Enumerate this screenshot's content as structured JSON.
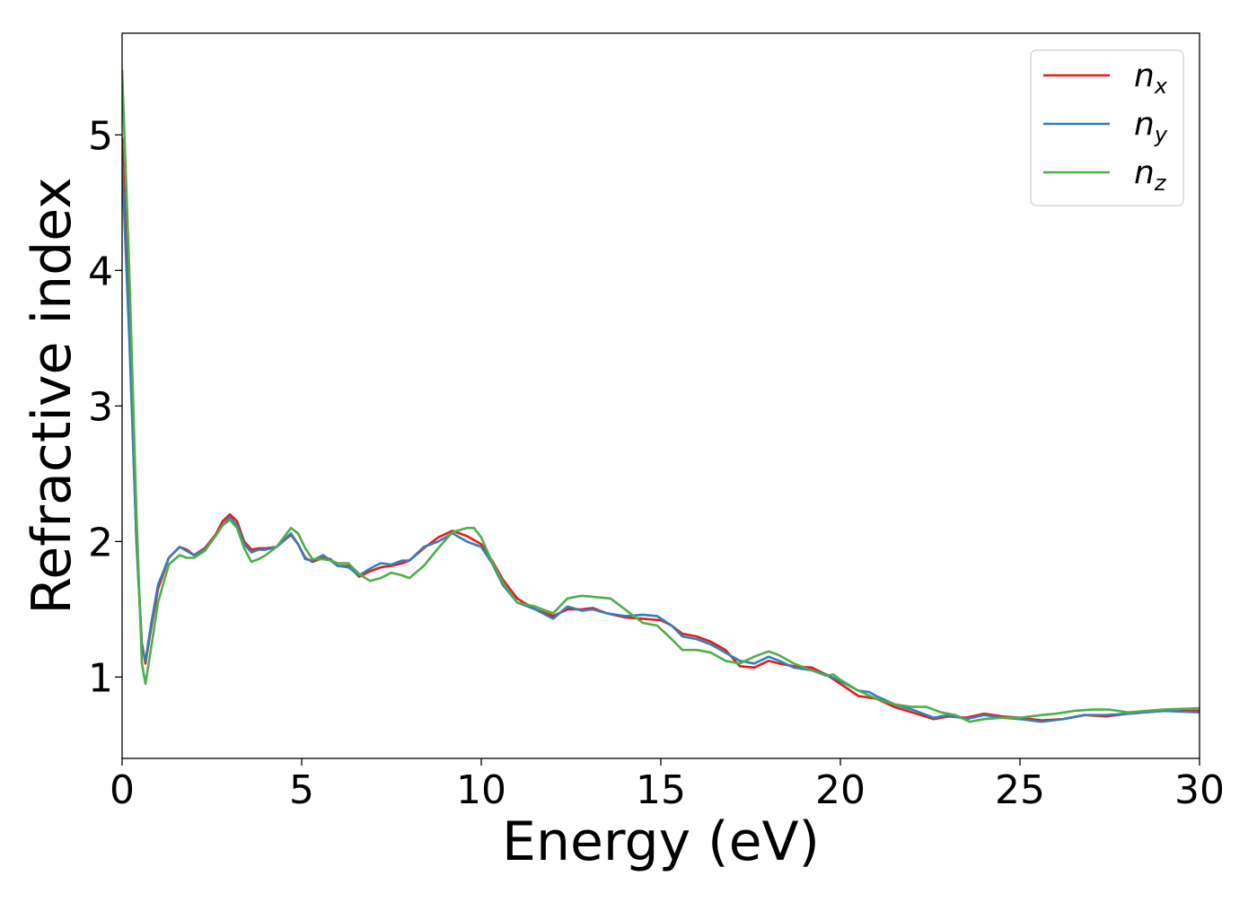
{
  "chart_data": {
    "type": "line",
    "title": "",
    "xlabel": "Energy (eV)",
    "ylabel": "Refractive index",
    "xlim": [
      0,
      30
    ],
    "ylim": [
      0.4,
      5.75
    ],
    "xticks": [
      0,
      5,
      10,
      15,
      20,
      25,
      30
    ],
    "yticks": [
      1,
      2,
      3,
      4,
      5
    ],
    "grid": false,
    "legend": {
      "position": "top-right",
      "entries": [
        {
          "base": "n",
          "sub": "x",
          "color": "#e41a1c"
        },
        {
          "base": "n",
          "sub": "y",
          "color": "#377eb8"
        },
        {
          "base": "n",
          "sub": "z",
          "color": "#4daf4a"
        }
      ]
    },
    "series": [
      {
        "name": "nx",
        "color": "#e41a1c",
        "points": [
          [
            0,
            4.98
          ],
          [
            0.2,
            3.6
          ],
          [
            0.4,
            2.0
          ],
          [
            0.55,
            1.25
          ],
          [
            0.65,
            1.1
          ],
          [
            0.8,
            1.35
          ],
          [
            1.0,
            1.65
          ],
          [
            1.3,
            1.88
          ],
          [
            1.6,
            1.96
          ],
          [
            1.8,
            1.94
          ],
          [
            2.0,
            1.9
          ],
          [
            2.3,
            1.95
          ],
          [
            2.6,
            2.05
          ],
          [
            2.8,
            2.15
          ],
          [
            3.0,
            2.2
          ],
          [
            3.2,
            2.15
          ],
          [
            3.4,
            2.0
          ],
          [
            3.6,
            1.94
          ],
          [
            3.8,
            1.95
          ],
          [
            4.0,
            1.95
          ],
          [
            4.3,
            1.96
          ],
          [
            4.7,
            2.05
          ],
          [
            4.9,
            1.98
          ],
          [
            5.1,
            1.88
          ],
          [
            5.3,
            1.85
          ],
          [
            5.6,
            1.88
          ],
          [
            5.8,
            1.87
          ],
          [
            6.0,
            1.82
          ],
          [
            6.3,
            1.82
          ],
          [
            6.6,
            1.74
          ],
          [
            6.9,
            1.78
          ],
          [
            7.2,
            1.81
          ],
          [
            7.5,
            1.82
          ],
          [
            7.8,
            1.84
          ],
          [
            8.0,
            1.86
          ],
          [
            8.4,
            1.95
          ],
          [
            8.8,
            2.03
          ],
          [
            9.2,
            2.08
          ],
          [
            9.6,
            2.04
          ],
          [
            10.0,
            1.98
          ],
          [
            10.3,
            1.86
          ],
          [
            10.6,
            1.72
          ],
          [
            11.0,
            1.58
          ],
          [
            11.5,
            1.5
          ],
          [
            12.0,
            1.45
          ],
          [
            12.4,
            1.5
          ],
          [
            12.8,
            1.5
          ],
          [
            13.1,
            1.51
          ],
          [
            13.5,
            1.47
          ],
          [
            14.0,
            1.44
          ],
          [
            14.5,
            1.43
          ],
          [
            15.0,
            1.42
          ],
          [
            15.3,
            1.38
          ],
          [
            15.6,
            1.32
          ],
          [
            16.0,
            1.3
          ],
          [
            16.4,
            1.26
          ],
          [
            16.8,
            1.2
          ],
          [
            17.2,
            1.08
          ],
          [
            17.6,
            1.07
          ],
          [
            18.0,
            1.12
          ],
          [
            18.3,
            1.1
          ],
          [
            18.7,
            1.08
          ],
          [
            19.2,
            1.07
          ],
          [
            19.6,
            1.02
          ],
          [
            20.0,
            0.95
          ],
          [
            20.5,
            0.86
          ],
          [
            21.0,
            0.84
          ],
          [
            21.5,
            0.78
          ],
          [
            22.0,
            0.74
          ],
          [
            22.6,
            0.69
          ],
          [
            23.0,
            0.71
          ],
          [
            23.5,
            0.7
          ],
          [
            24.0,
            0.73
          ],
          [
            24.5,
            0.71
          ],
          [
            25.0,
            0.7
          ],
          [
            25.6,
            0.68
          ],
          [
            26.2,
            0.69
          ],
          [
            26.8,
            0.72
          ],
          [
            27.4,
            0.71
          ],
          [
            28.0,
            0.73
          ],
          [
            29.0,
            0.75
          ],
          [
            30.0,
            0.75
          ]
        ]
      },
      {
        "name": "ny",
        "color": "#377eb8",
        "points": [
          [
            0,
            4.78
          ],
          [
            0.2,
            3.5
          ],
          [
            0.4,
            2.0
          ],
          [
            0.55,
            1.22
          ],
          [
            0.65,
            1.12
          ],
          [
            0.8,
            1.38
          ],
          [
            1.0,
            1.68
          ],
          [
            1.3,
            1.88
          ],
          [
            1.6,
            1.96
          ],
          [
            1.8,
            1.93
          ],
          [
            2.0,
            1.9
          ],
          [
            2.3,
            1.94
          ],
          [
            2.6,
            2.04
          ],
          [
            2.8,
            2.12
          ],
          [
            3.0,
            2.18
          ],
          [
            3.2,
            2.12
          ],
          [
            3.4,
            1.98
          ],
          [
            3.6,
            1.92
          ],
          [
            3.8,
            1.94
          ],
          [
            4.0,
            1.94
          ],
          [
            4.3,
            1.96
          ],
          [
            4.7,
            2.06
          ],
          [
            4.9,
            1.98
          ],
          [
            5.1,
            1.87
          ],
          [
            5.3,
            1.86
          ],
          [
            5.6,
            1.9
          ],
          [
            5.8,
            1.86
          ],
          [
            6.0,
            1.82
          ],
          [
            6.3,
            1.81
          ],
          [
            6.6,
            1.75
          ],
          [
            6.9,
            1.8
          ],
          [
            7.2,
            1.84
          ],
          [
            7.5,
            1.83
          ],
          [
            7.8,
            1.86
          ],
          [
            8.0,
            1.86
          ],
          [
            8.4,
            1.96
          ],
          [
            8.8,
            2.0
          ],
          [
            9.2,
            2.06
          ],
          [
            9.6,
            2.0
          ],
          [
            10.0,
            1.96
          ],
          [
            10.3,
            1.84
          ],
          [
            10.6,
            1.68
          ],
          [
            11.0,
            1.55
          ],
          [
            11.5,
            1.5
          ],
          [
            12.0,
            1.43
          ],
          [
            12.4,
            1.52
          ],
          [
            12.8,
            1.49
          ],
          [
            13.1,
            1.5
          ],
          [
            13.5,
            1.47
          ],
          [
            14.0,
            1.45
          ],
          [
            14.5,
            1.46
          ],
          [
            14.9,
            1.45
          ],
          [
            15.3,
            1.38
          ],
          [
            15.6,
            1.3
          ],
          [
            16.0,
            1.28
          ],
          [
            16.4,
            1.24
          ],
          [
            16.8,
            1.18
          ],
          [
            17.2,
            1.12
          ],
          [
            17.6,
            1.1
          ],
          [
            18.0,
            1.15
          ],
          [
            18.3,
            1.12
          ],
          [
            18.7,
            1.07
          ],
          [
            19.2,
            1.05
          ],
          [
            19.6,
            1.02
          ],
          [
            20.0,
            0.97
          ],
          [
            20.5,
            0.9
          ],
          [
            20.8,
            0.89
          ],
          [
            21.0,
            0.86
          ],
          [
            21.5,
            0.8
          ],
          [
            22.0,
            0.76
          ],
          [
            22.6,
            0.7
          ],
          [
            23.0,
            0.72
          ],
          [
            23.5,
            0.69
          ],
          [
            24.0,
            0.72
          ],
          [
            24.5,
            0.7
          ],
          [
            25.0,
            0.69
          ],
          [
            25.6,
            0.67
          ],
          [
            26.2,
            0.69
          ],
          [
            26.8,
            0.72
          ],
          [
            27.4,
            0.72
          ],
          [
            28.0,
            0.73
          ],
          [
            29.0,
            0.75
          ],
          [
            30.0,
            0.74
          ]
        ]
      },
      {
        "name": "nz",
        "color": "#4daf4a",
        "points": [
          [
            0,
            5.48
          ],
          [
            0.2,
            4.0
          ],
          [
            0.4,
            2.2
          ],
          [
            0.55,
            1.1
          ],
          [
            0.65,
            0.95
          ],
          [
            0.8,
            1.2
          ],
          [
            1.0,
            1.55
          ],
          [
            1.3,
            1.83
          ],
          [
            1.6,
            1.9
          ],
          [
            1.8,
            1.88
          ],
          [
            2.0,
            1.88
          ],
          [
            2.3,
            1.93
          ],
          [
            2.6,
            2.04
          ],
          [
            2.8,
            2.12
          ],
          [
            3.0,
            2.16
          ],
          [
            3.2,
            2.1
          ],
          [
            3.4,
            1.95
          ],
          [
            3.6,
            1.85
          ],
          [
            3.8,
            1.87
          ],
          [
            4.0,
            1.9
          ],
          [
            4.3,
            1.96
          ],
          [
            4.7,
            2.1
          ],
          [
            4.9,
            2.06
          ],
          [
            5.1,
            1.95
          ],
          [
            5.3,
            1.87
          ],
          [
            5.6,
            1.87
          ],
          [
            5.8,
            1.86
          ],
          [
            6.0,
            1.84
          ],
          [
            6.3,
            1.84
          ],
          [
            6.6,
            1.76
          ],
          [
            6.9,
            1.71
          ],
          [
            7.2,
            1.73
          ],
          [
            7.5,
            1.77
          ],
          [
            7.8,
            1.75
          ],
          [
            8.0,
            1.73
          ],
          [
            8.4,
            1.82
          ],
          [
            8.8,
            1.95
          ],
          [
            9.2,
            2.07
          ],
          [
            9.6,
            2.1
          ],
          [
            9.8,
            2.1
          ],
          [
            10.0,
            2.03
          ],
          [
            10.3,
            1.85
          ],
          [
            10.6,
            1.7
          ],
          [
            11.0,
            1.55
          ],
          [
            11.5,
            1.52
          ],
          [
            12.0,
            1.47
          ],
          [
            12.4,
            1.58
          ],
          [
            12.8,
            1.6
          ],
          [
            13.2,
            1.59
          ],
          [
            13.6,
            1.58
          ],
          [
            14.0,
            1.5
          ],
          [
            14.5,
            1.4
          ],
          [
            14.9,
            1.38
          ],
          [
            15.3,
            1.28
          ],
          [
            15.6,
            1.2
          ],
          [
            16.0,
            1.2
          ],
          [
            16.4,
            1.18
          ],
          [
            16.8,
            1.12
          ],
          [
            17.2,
            1.1
          ],
          [
            17.6,
            1.15
          ],
          [
            18.0,
            1.19
          ],
          [
            18.3,
            1.16
          ],
          [
            18.7,
            1.1
          ],
          [
            19.2,
            1.05
          ],
          [
            19.6,
            1.01
          ],
          [
            19.8,
            1.02
          ],
          [
            20.0,
            0.98
          ],
          [
            20.5,
            0.9
          ],
          [
            21.0,
            0.84
          ],
          [
            21.5,
            0.8
          ],
          [
            22.0,
            0.78
          ],
          [
            22.4,
            0.78
          ],
          [
            22.8,
            0.74
          ],
          [
            23.2,
            0.72
          ],
          [
            23.6,
            0.67
          ],
          [
            24.0,
            0.69
          ],
          [
            24.5,
            0.7
          ],
          [
            25.0,
            0.7
          ],
          [
            25.6,
            0.72
          ],
          [
            26.0,
            0.73
          ],
          [
            26.5,
            0.75
          ],
          [
            27.0,
            0.76
          ],
          [
            27.5,
            0.76
          ],
          [
            28.0,
            0.74
          ],
          [
            29.0,
            0.76
          ],
          [
            30.0,
            0.77
          ]
        ]
      }
    ]
  }
}
